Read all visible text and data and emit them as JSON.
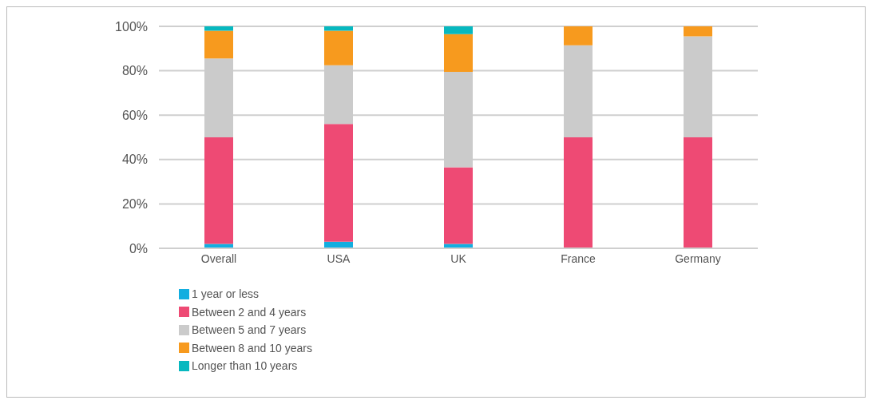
{
  "chart_data": {
    "type": "bar",
    "stacked": true,
    "categories": [
      "Overall",
      "USA",
      "UK",
      "France",
      "Germany"
    ],
    "series": [
      {
        "name": "1 year or less",
        "color": "#12aee0",
        "values": [
          2,
          3,
          2,
          0,
          0
        ]
      },
      {
        "name": "Between 2 and 4 years",
        "color": "#ee4a74",
        "values": [
          48,
          53,
          34.5,
          50,
          50
        ]
      },
      {
        "name": "Between 5 and 7 years",
        "color": "#cbcbcb",
        "values": [
          35.5,
          26.5,
          43,
          41.5,
          45.5
        ]
      },
      {
        "name": "Between 8 and 10 years",
        "color": "#f79a1e",
        "values": [
          12.5,
          15.5,
          17,
          8.5,
          4.5
        ]
      },
      {
        "name": "Longer than 10 years",
        "color": "#07b8bf",
        "values": [
          2,
          2,
          3.5,
          0,
          0
        ]
      }
    ],
    "ylim": [
      0,
      100
    ],
    "yticks": [
      {
        "value": 0,
        "label": "0%"
      },
      {
        "value": 20,
        "label": "20%"
      },
      {
        "value": 40,
        "label": "40%"
      },
      {
        "value": 60,
        "label": "60%"
      },
      {
        "value": 80,
        "label": "80%"
      },
      {
        "value": 100,
        "label": "100%"
      }
    ],
    "grid": "y",
    "legend": "bottom left"
  }
}
